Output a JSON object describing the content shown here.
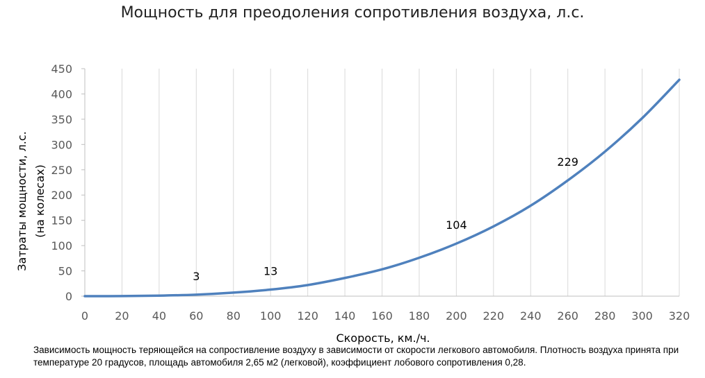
{
  "chart_data": {
    "type": "line",
    "title": "Мощность для преодоления сопротивления воздуха, л.с.",
    "xlabel": "Скорость, км./ч.",
    "ylabel": [
      "Затраты мощности, л.с.",
      "(на колесах)"
    ],
    "xlim": [
      0,
      320
    ],
    "ylim": [
      0,
      450
    ],
    "x_ticks": [
      "0",
      "20",
      "40",
      "60",
      "80",
      "100",
      "120",
      "140",
      "160",
      "180",
      "200",
      "220",
      "240",
      "260",
      "280",
      "300",
      "320"
    ],
    "y_ticks": [
      "0",
      "50",
      "100",
      "150",
      "200",
      "250",
      "300",
      "350",
      "400",
      "450"
    ],
    "grid": "vertical",
    "series": [
      {
        "color": "#4f81bd",
        "x": [
          0,
          20,
          40,
          60,
          80,
          100,
          120,
          140,
          160,
          180,
          200,
          220,
          240,
          260,
          280,
          300,
          320
        ],
        "y": [
          0,
          0.1,
          1,
          3,
          7,
          13,
          22,
          36,
          53,
          76,
          104,
          138,
          179,
          229,
          286,
          352,
          428
        ]
      }
    ],
    "data_labels": [
      {
        "x": 60,
        "y": 3,
        "text": "3"
      },
      {
        "x": 100,
        "y": 13,
        "text": "13"
      },
      {
        "x": 200,
        "y": 104,
        "text": "104"
      },
      {
        "x": 260,
        "y": 229,
        "text": "229"
      }
    ]
  },
  "caption": "Зависимость мощность теряющейся на сопростивление воздуху в зависимости от скорости легкового автомобиля. Плотность воздуха принята при температуре 20 градусов, площадь автомобиля 2,65 м2 (легковой), коэффициент лобового сопротивления 0,28."
}
